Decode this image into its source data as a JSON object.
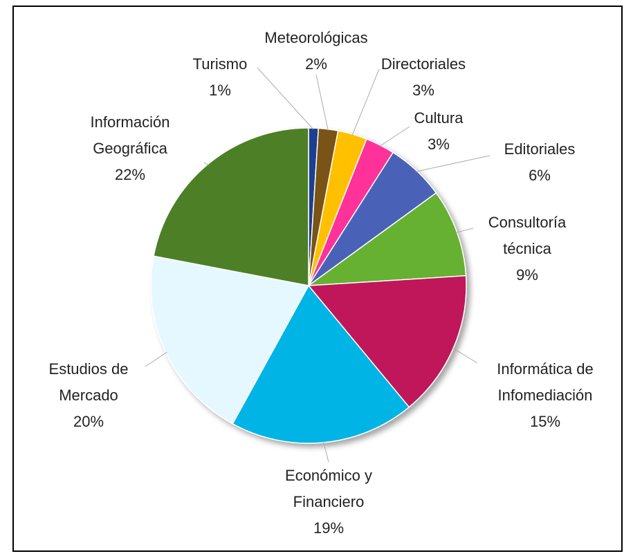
{
  "chart_data": {
    "type": "pie",
    "categories": [
      "Turismo",
      "Meteorológicas",
      "Directoriales",
      "Cultura",
      "Editoriales",
      "Consultoría técnica",
      "Informática de Infomediación",
      "Económico y Financiero",
      "Estudios de Mercado",
      "Información Geográfica"
    ],
    "values": [
      1,
      2,
      3,
      3,
      6,
      9,
      15,
      19,
      20,
      22
    ],
    "value_labels": [
      "1%",
      "2%",
      "3%",
      "3%",
      "6%",
      "9%",
      "15%",
      "19%",
      "20%",
      "22%"
    ],
    "colors": [
      "#1f3f8f",
      "#7a5212",
      "#ffc000",
      "#ff3399",
      "#4a62b8",
      "#66b032",
      "#c0145a",
      "#00b4e6",
      "#e6f8ff",
      "#4e8025"
    ]
  }
}
